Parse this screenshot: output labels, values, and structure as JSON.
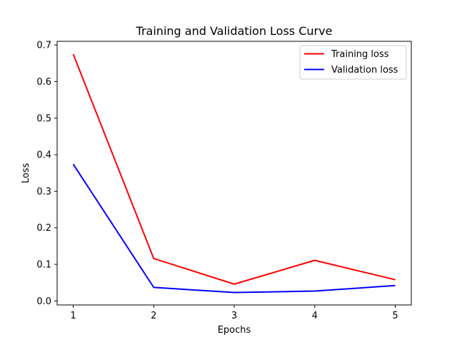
{
  "chart_data": {
    "type": "line",
    "title": "Training and Validation Loss Curve",
    "xlabel": "Epochs",
    "ylabel": "Loss",
    "x": [
      1,
      2,
      3,
      4,
      5
    ],
    "xticks": [
      "1",
      "2",
      "3",
      "4",
      "5"
    ],
    "yticks": [
      "0.0",
      "0.1",
      "0.2",
      "0.3",
      "0.4",
      "0.5",
      "0.6",
      "0.7"
    ],
    "xlim": [
      0.8,
      5.2
    ],
    "ylim": [
      -0.011,
      0.71
    ],
    "grid": false,
    "legend_position": "upper right",
    "series": [
      {
        "name": "Training loss",
        "color": "#ff0000",
        "values": [
          0.675,
          0.116,
          0.046,
          0.111,
          0.058
        ]
      },
      {
        "name": "Validation loss",
        "color": "#0000ff",
        "values": [
          0.374,
          0.037,
          0.023,
          0.027,
          0.042
        ]
      }
    ]
  }
}
